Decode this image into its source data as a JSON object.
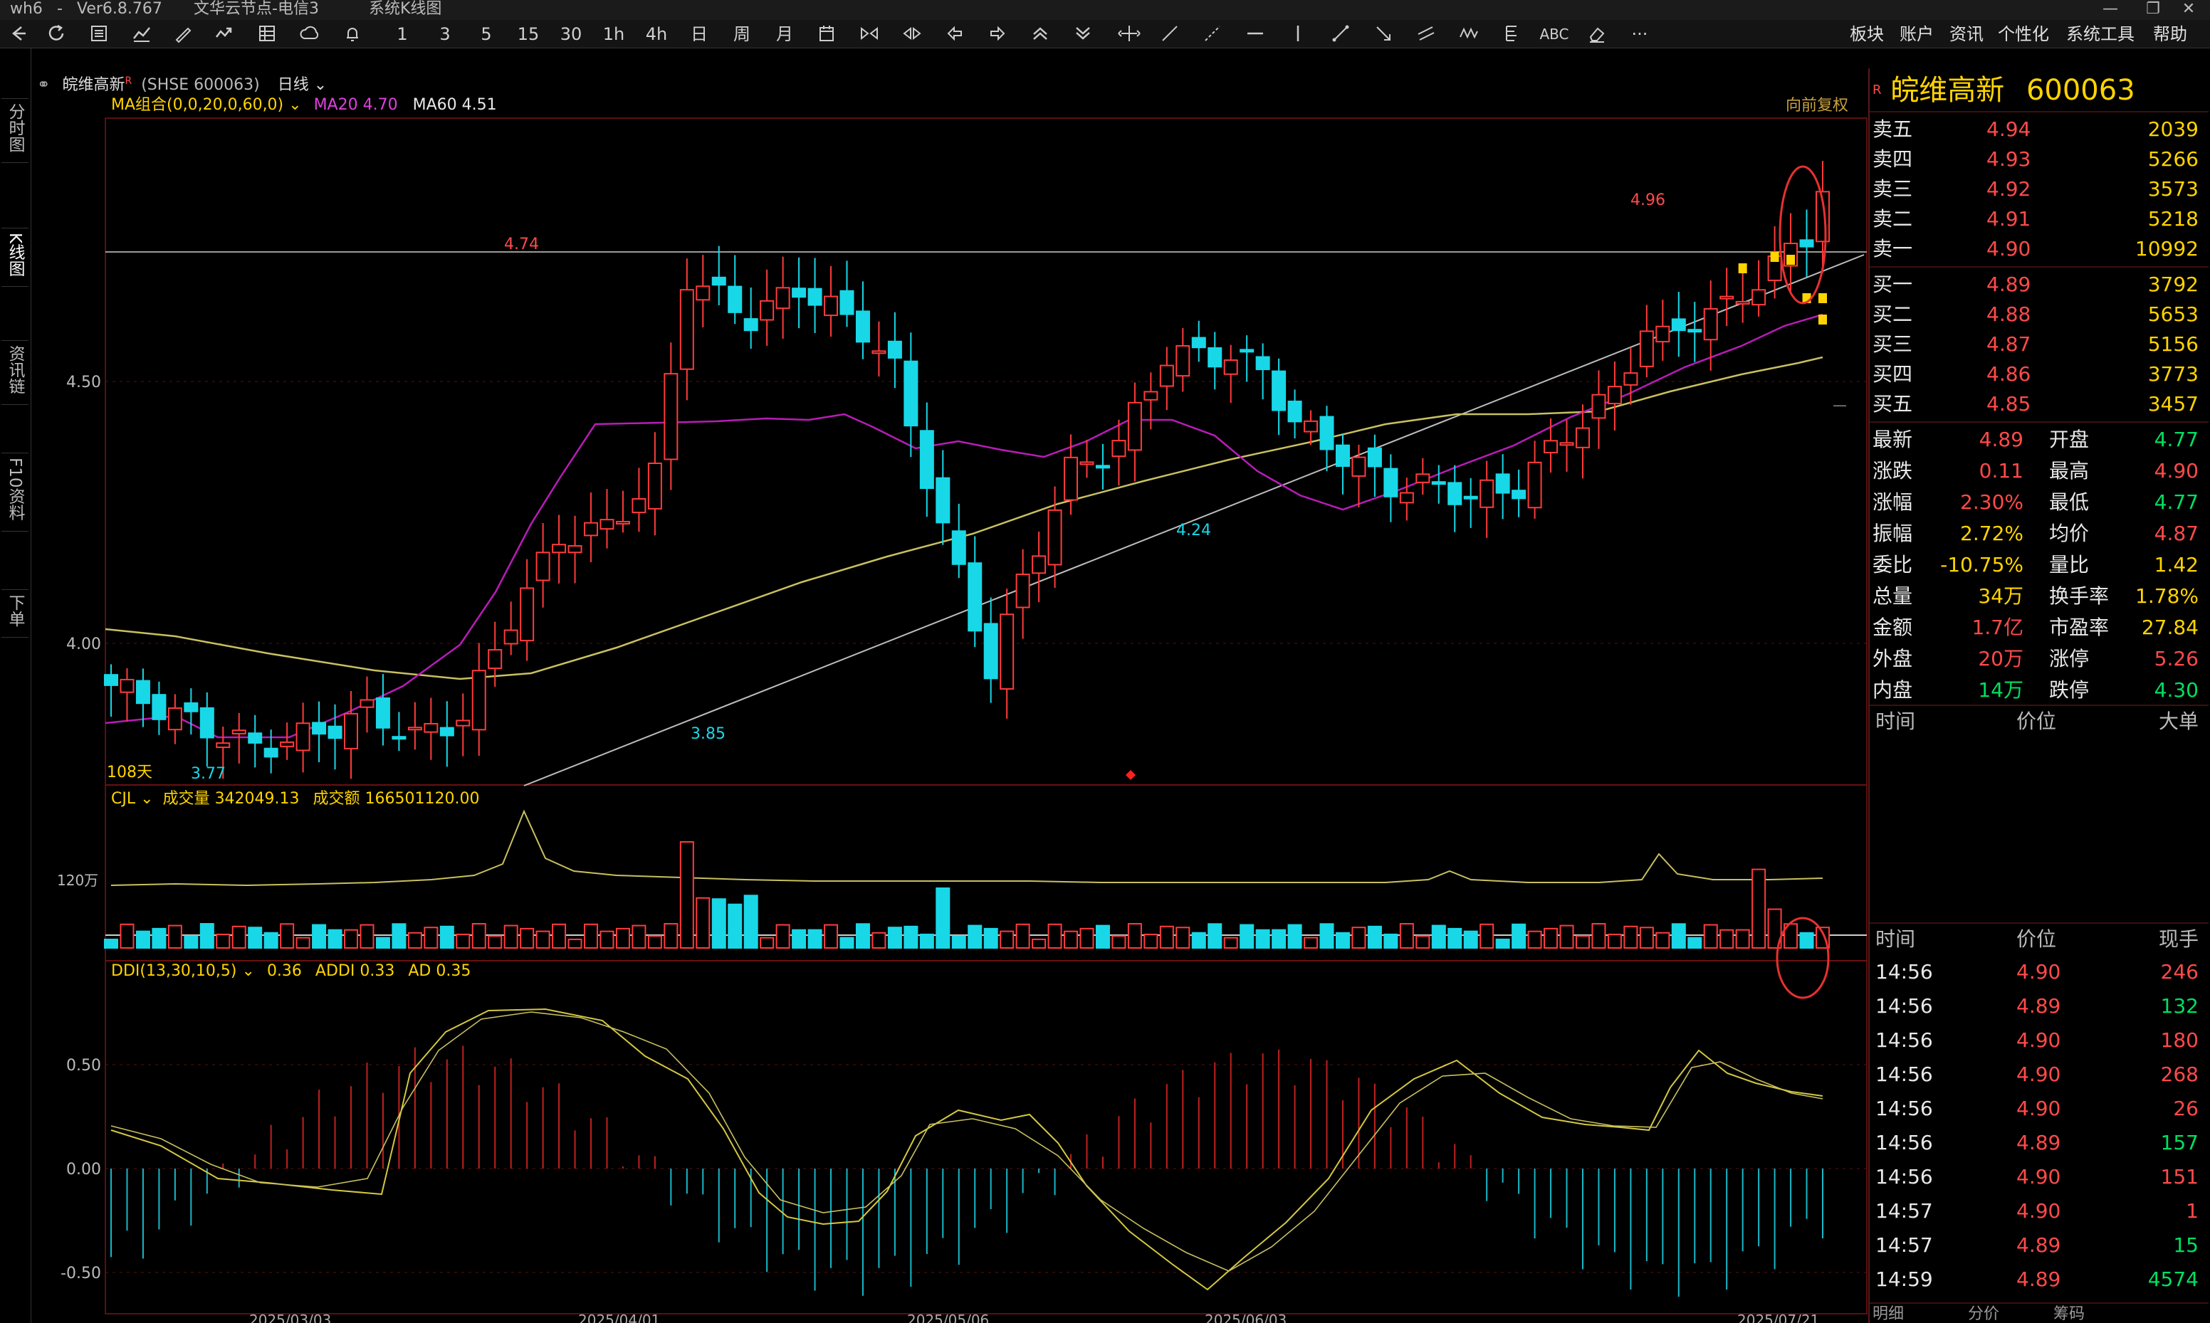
{
  "titlebar": {
    "app": "wh6",
    "sep": "-",
    "version": "Ver6.8.767",
    "server": "文华云节点-电信3",
    "window": "系统K线图"
  },
  "toolbar": {
    "periods": [
      "1",
      "3",
      "5",
      "15",
      "30",
      "1h",
      "4h",
      "日",
      "周",
      "月"
    ],
    "menus": [
      "板块",
      "账户",
      "资讯",
      "个性化",
      "系统工具",
      "帮助"
    ],
    "abc_label": "ABC",
    "more_label": "···"
  },
  "left_tabs": [
    "分时图",
    "K线图",
    "资讯链",
    "F10资料",
    "下单"
  ],
  "chart_header": {
    "stock_name": "皖维高新",
    "market_code": "(SHSE 600063)",
    "period": "日线",
    "ma_group": "MA组合(0,0,20,0,60,0)",
    "ma20_label": "MA20",
    "ma20_value": "4.70",
    "ma60_label": "MA60",
    "ma60_value": "4.51",
    "adjust": "向前复权",
    "r_mark": "R"
  },
  "price_panel": {
    "y_labels": [
      "4.50",
      "4.00"
    ],
    "annotations": {
      "high1": "4.74",
      "high2": "4.96",
      "low1": "3.77",
      "low2": "3.85",
      "low3": "4.24"
    },
    "days": "108天"
  },
  "volume_panel": {
    "indicator": "CJL",
    "vol_label": "成交量",
    "vol_value": "342049.13",
    "amt_label": "成交额",
    "amt_value": "166501120.00",
    "y_label": "120万"
  },
  "ddi_panel": {
    "indicator": "DDI(13,30,10,5)",
    "ddi_value": "0.36",
    "addi_label": "ADDI",
    "addi_value": "0.33",
    "ad_label": "AD",
    "ad_value": "0.35",
    "y_labels": [
      "0.50",
      "0.00",
      "-0.50"
    ]
  },
  "x_dates": [
    "2025/03/03",
    "2025/04/01",
    "2025/05/06",
    "2025/06/03",
    "2025/07/21"
  ],
  "quote": {
    "r_mark": "R",
    "name": "皖维高新",
    "code": "600063",
    "asks": [
      {
        "label": "卖五",
        "price": "4.94",
        "vol": "2039"
      },
      {
        "label": "卖四",
        "price": "4.93",
        "vol": "5266"
      },
      {
        "label": "卖三",
        "price": "4.92",
        "vol": "3573"
      },
      {
        "label": "卖二",
        "price": "4.91",
        "vol": "5218"
      },
      {
        "label": "卖一",
        "price": "4.90",
        "vol": "10992"
      }
    ],
    "bids": [
      {
        "label": "买一",
        "price": "4.89",
        "vol": "3792"
      },
      {
        "label": "买二",
        "price": "4.88",
        "vol": "5653"
      },
      {
        "label": "买三",
        "price": "4.87",
        "vol": "5156"
      },
      {
        "label": "买四",
        "price": "4.86",
        "vol": "3773"
      },
      {
        "label": "买五",
        "price": "4.85",
        "vol": "3457"
      }
    ],
    "stats": [
      {
        "l1": "最新",
        "v1": "4.89",
        "c1": "red",
        "l2": "开盘",
        "v2": "4.77",
        "c2": "green"
      },
      {
        "l1": "涨跌",
        "v1": "0.11",
        "c1": "red",
        "l2": "最高",
        "v2": "4.90",
        "c2": "red"
      },
      {
        "l1": "涨幅",
        "v1": "2.30%",
        "c1": "red",
        "l2": "最低",
        "v2": "4.77",
        "c2": "green"
      },
      {
        "l1": "振幅",
        "v1": "2.72%",
        "c1": "yellow",
        "l2": "均价",
        "v2": "4.87",
        "c2": "red"
      },
      {
        "l1": "委比",
        "v1": "-10.75%",
        "c1": "yellow",
        "l2": "量比",
        "v2": "1.42",
        "c2": "yellow"
      },
      {
        "l1": "总量",
        "v1": "34万",
        "c1": "yellow",
        "l2": "换手率",
        "v2": "1.78%",
        "c2": "yellow"
      },
      {
        "l1": "金额",
        "v1": "1.7亿",
        "c1": "red",
        "l2": "市盈率",
        "v2": "27.84",
        "c2": "yellow"
      },
      {
        "l1": "外盘",
        "v1": "20万",
        "c1": "red",
        "l2": "涨停",
        "v2": "5.26",
        "c2": "red"
      },
      {
        "l1": "内盘",
        "v1": "14万",
        "c1": "green",
        "l2": "跌停",
        "v2": "4.30",
        "c2": "green"
      }
    ],
    "bigorder_headers": [
      "时间",
      "价位",
      "大单"
    ],
    "tick_headers": [
      "时间",
      "价位",
      "现手"
    ],
    "ticks": [
      {
        "time": "14:56",
        "price": "4.90",
        "vol": "246",
        "vc": "red"
      },
      {
        "time": "14:56",
        "price": "4.89",
        "vol": "132",
        "vc": "green"
      },
      {
        "time": "14:56",
        "price": "4.90",
        "vol": "180",
        "vc": "red"
      },
      {
        "time": "14:56",
        "price": "4.90",
        "vol": "268",
        "vc": "red"
      },
      {
        "time": "14:56",
        "price": "4.90",
        "vol": "26",
        "vc": "red"
      },
      {
        "time": "14:56",
        "price": "4.89",
        "vol": "157",
        "vc": "green"
      },
      {
        "time": "14:56",
        "price": "4.90",
        "vol": "151",
        "vc": "red"
      },
      {
        "time": "14:57",
        "price": "4.90",
        "vol": "1",
        "vc": "red"
      },
      {
        "time": "14:57",
        "price": "4.89",
        "vol": "15",
        "vc": "green"
      },
      {
        "time": "14:59",
        "price": "4.89",
        "vol": "4574",
        "vc": "green"
      }
    ],
    "bottom_tabs": [
      "明细",
      "分价",
      "筹码"
    ]
  },
  "colors": {
    "up": "#ff3b3b",
    "down": "#18d8e8",
    "ma20": "#c020c0",
    "ma60": "#c8c060",
    "grid": "#6a1010",
    "annotation_circle": "#e83030"
  }
}
